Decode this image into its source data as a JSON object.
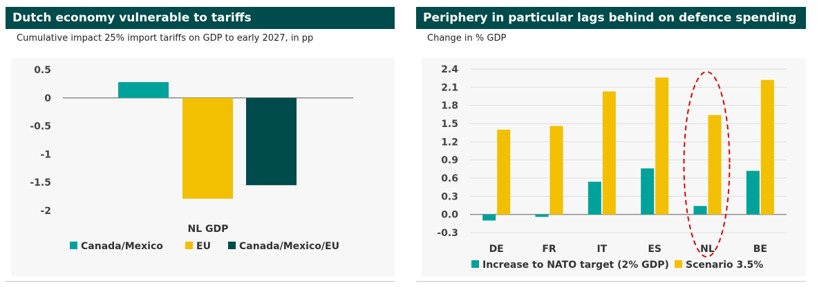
{
  "left": {
    "title": "Dutch economy vulnerable to tariffs",
    "subtitle": "Cumulative impact 25% import tariffs on GDP to early 2027, in pp"
  },
  "right": {
    "title": "Periphery in particular lags behind on defence spending",
    "subtitle": "Change in % GDP"
  },
  "colors": {
    "teal": "#00a29a",
    "yellow": "#f2c000",
    "dark_teal": "#004b4b",
    "highlight": "#e00000"
  },
  "chart_data": [
    {
      "type": "bar",
      "title": "Dutch economy vulnerable to tariffs",
      "categories": [
        "NL GDP"
      ],
      "series": [
        {
          "name": "Canada/Mexico",
          "values": [
            0.28
          ]
        },
        {
          "name": "EU",
          "values": [
            -1.79
          ]
        },
        {
          "name": "Canada/Mexico/EU",
          "values": [
            -1.55
          ]
        }
      ],
      "yticks": [
        "0.5",
        "0",
        "-0.5",
        "-1",
        "-1.5",
        "-2"
      ],
      "ylim": [
        -2,
        0.5
      ],
      "legend": "bottom",
      "grid": false
    },
    {
      "type": "bar",
      "title": "Periphery in particular lags behind on defence spending",
      "categories": [
        "DE",
        "FR",
        "IT",
        "ES",
        "NL",
        "BE"
      ],
      "series": [
        {
          "name": "Increase to NATO target (2% GDP)",
          "values": [
            -0.1,
            -0.04,
            0.54,
            0.76,
            0.14,
            0.72
          ]
        },
        {
          "name": "Scenario 3.5%",
          "values": [
            1.4,
            1.46,
            2.03,
            2.26,
            1.64,
            2.22
          ]
        }
      ],
      "yticks": [
        "2.4",
        "2.1",
        "1.8",
        "1.5",
        "1.2",
        "0.9",
        "0.6",
        "0.3",
        "0.0",
        "-0.3"
      ],
      "ylim": [
        -0.3,
        2.4
      ],
      "legend": "bottom",
      "grid": true,
      "highlight": "NL"
    }
  ]
}
